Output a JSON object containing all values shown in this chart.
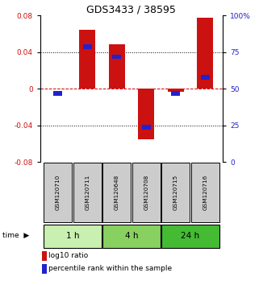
{
  "title": "GDS3433 / 38595",
  "samples": [
    "GSM120710",
    "GSM120711",
    "GSM120648",
    "GSM120708",
    "GSM120715",
    "GSM120716"
  ],
  "log10_ratio": [
    0.0,
    0.065,
    0.049,
    -0.055,
    -0.003,
    0.078
  ],
  "percentile_rank": [
    47,
    79,
    72,
    24,
    47,
    58
  ],
  "time_groups": [
    {
      "label": "1 h",
      "samples": [
        0,
        1
      ],
      "color": "#c8f0b0"
    },
    {
      "label": "4 h",
      "samples": [
        2,
        3
      ],
      "color": "#88d060"
    },
    {
      "label": "24 h",
      "samples": [
        4,
        5
      ],
      "color": "#44bb33"
    }
  ],
  "ylim_left": [
    -0.08,
    0.08
  ],
  "yticks_left": [
    -0.08,
    -0.04,
    0,
    0.04,
    0.08
  ],
  "yticks_right": [
    0,
    25,
    50,
    75,
    100
  ],
  "bar_color_red": "#cc1111",
  "bar_color_blue": "#2222cc",
  "zero_line_color": "#cc0000",
  "bg_color": "#ffffff",
  "title_fontsize": 9,
  "tick_fontsize": 6.5,
  "legend_fontsize": 6.5,
  "sample_box_color": "#cccccc",
  "time_label": "time"
}
